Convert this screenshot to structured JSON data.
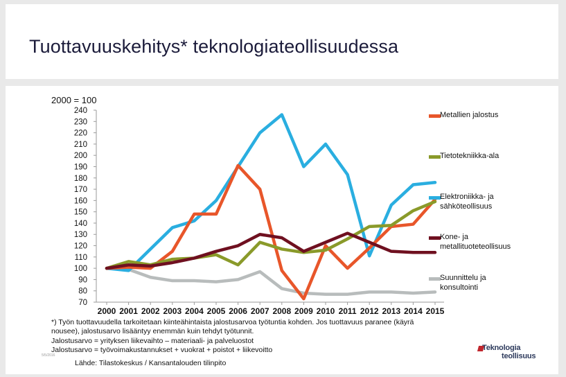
{
  "slide": {
    "title": "Tuottavuuskehitys* teknologiateollisuudessa",
    "index_note": "2000 = 100",
    "footnote": [
      "*) Työn tuottavuudella tarkoitetaan kiinteähintaista jalostusarvoa työtuntia kohden. Jos tuottavuus paranee (käyrä",
      "nousee), jalostusarvo lisääntyy enemmän kuin tehdyt työtunnit.",
      "Jalostusarvo = yrityksen liikevaihto – materiaali- ja palveluostot",
      "Jalostusarvo = työvoimakustannukset + vuokrat + poistot + liikevoitto"
    ],
    "source": "Lähde: Tilastokeskus / Kansantalouden tilinpito",
    "date_tag": "5/5/2016",
    "logo": {
      "line1": "Teknologia",
      "line2": "teollisuus"
    }
  },
  "chart_data": {
    "type": "line",
    "title": "Tuottavuuskehitys* teknologiateollisuudessa",
    "ylabel": "2000 = 100",
    "xlabel": "",
    "x": [
      "2000",
      "2001",
      "2002",
      "2003",
      "2004",
      "2005",
      "2006",
      "2007",
      "2008",
      "2009",
      "2010",
      "2011",
      "2012",
      "2013",
      "2014",
      "2015"
    ],
    "ylim": [
      70,
      240
    ],
    "yticks": [
      70,
      80,
      90,
      100,
      110,
      120,
      130,
      140,
      150,
      160,
      170,
      180,
      190,
      200,
      210,
      220,
      230,
      240
    ],
    "legend_position": "right",
    "series": [
      {
        "name": "Metallien jalostus",
        "color": "#e8562a",
        "values": [
          100,
          101,
          100,
          115,
          148,
          148,
          191,
          170,
          98,
          73,
          120,
          100,
          118,
          137,
          139,
          161
        ]
      },
      {
        "name": "Tietotekniikka-ala",
        "color": "#8a9a2a",
        "values": [
          100,
          106,
          103,
          108,
          109,
          112,
          103,
          123,
          117,
          114,
          116,
          126,
          137,
          138,
          151,
          159
        ]
      },
      {
        "name": "Elektroniikka- ja sähköteollisuus",
        "color": "#2aaee0",
        "values": [
          100,
          98,
          117,
          136,
          142,
          160,
          190,
          220,
          236,
          190,
          210,
          183,
          111,
          156,
          174,
          176
        ]
      },
      {
        "name": "Kone- ja metallituoteteollisuus",
        "color": "#6f1020",
        "values": [
          100,
          103,
          102,
          105,
          109,
          115,
          120,
          130,
          127,
          115,
          123,
          131,
          123,
          115,
          114,
          114
        ]
      },
      {
        "name": "Suunnittelu ja konsultointi",
        "color": "#b8bcbc",
        "values": [
          100,
          99,
          92,
          89,
          89,
          88,
          90,
          97,
          82,
          78,
          77,
          77,
          79,
          79,
          78,
          79
        ]
      }
    ]
  }
}
